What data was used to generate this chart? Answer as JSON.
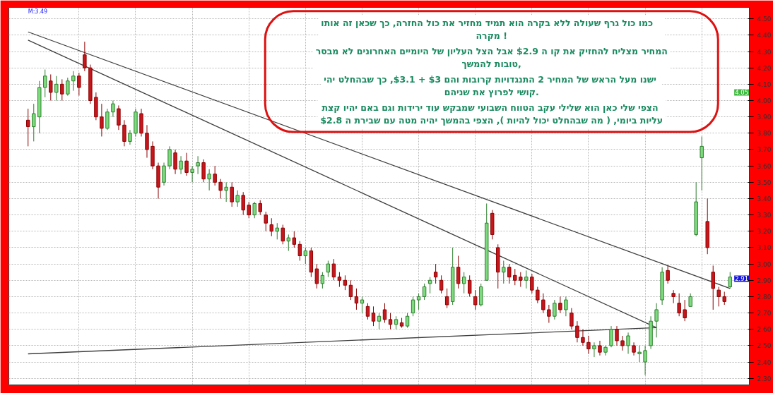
{
  "chart_data": {
    "type": "candlestick",
    "categories": [
      null,
      null,
      null,
      null,
      null,
      null,
      null,
      null,
      null,
      null,
      null,
      null,
      null,
      null,
      null,
      null,
      null,
      null,
      null,
      null,
      null,
      null,
      null,
      null,
      null,
      null,
      null,
      null,
      null,
      null,
      null,
      null,
      null,
      null,
      null,
      null,
      null,
      null,
      null,
      null,
      null,
      null,
      null,
      null,
      null,
      null,
      null,
      null,
      null,
      null,
      null,
      null,
      null,
      null,
      null,
      null,
      null,
      null,
      null,
      null,
      null,
      null,
      null,
      null,
      null,
      null,
      null,
      null,
      null,
      null,
      null,
      null,
      null,
      null,
      null,
      null,
      null,
      null,
      null,
      null,
      null,
      null,
      null,
      null,
      null,
      null,
      null,
      null,
      null,
      null,
      null,
      null,
      null,
      null,
      null,
      null,
      null,
      null,
      null,
      null,
      null,
      null,
      null,
      null,
      null,
      null,
      null,
      null,
      null,
      null,
      null,
      null,
      null,
      null,
      null,
      null,
      null,
      null,
      null,
      null,
      null,
      null,
      null,
      null,
      null
    ],
    "ohlc": [
      [
        3.88,
        3.95,
        3.72,
        3.84
      ],
      [
        3.84,
        3.98,
        3.75,
        3.92
      ],
      [
        3.9,
        4.12,
        3.8,
        4.08
      ],
      [
        4.08,
        4.19,
        4.02,
        4.15
      ],
      [
        4.12,
        4.16,
        4.0,
        4.05
      ],
      [
        4.05,
        4.15,
        4.0,
        4.1
      ],
      [
        4.1,
        4.13,
        4.0,
        4.04
      ],
      [
        4.04,
        4.14,
        4.03,
        4.12
      ],
      [
        4.12,
        4.18,
        4.06,
        4.15
      ],
      [
        4.15,
        4.17,
        4.03,
        4.08
      ],
      [
        4.28,
        4.36,
        4.18,
        4.2
      ],
      [
        4.2,
        4.22,
        3.98,
        4.0
      ],
      [
        4.02,
        4.05,
        3.88,
        3.9
      ],
      [
        3.9,
        3.98,
        3.78,
        3.83
      ],
      [
        3.83,
        3.95,
        3.82,
        3.93
      ],
      [
        3.93,
        4.0,
        3.9,
        3.98
      ],
      [
        3.95,
        3.97,
        3.82,
        3.85
      ],
      [
        3.85,
        3.88,
        3.72,
        3.75
      ],
      [
        3.75,
        3.82,
        3.73,
        3.8
      ],
      [
        3.8,
        3.95,
        3.78,
        3.93
      ],
      [
        3.92,
        3.95,
        3.78,
        3.8
      ],
      [
        3.8,
        3.85,
        3.65,
        3.7
      ],
      [
        3.72,
        3.75,
        3.58,
        3.6
      ],
      [
        3.6,
        3.62,
        3.4,
        3.47
      ],
      [
        3.5,
        3.62,
        3.48,
        3.6
      ],
      [
        3.6,
        3.72,
        3.58,
        3.7
      ],
      [
        3.68,
        3.7,
        3.55,
        3.58
      ],
      [
        3.58,
        3.66,
        3.55,
        3.63
      ],
      [
        3.63,
        3.68,
        3.54,
        3.56
      ],
      [
        3.56,
        3.6,
        3.5,
        3.58
      ],
      [
        3.6,
        3.66,
        3.55,
        3.62
      ],
      [
        3.62,
        3.64,
        3.5,
        3.52
      ],
      [
        3.52,
        3.58,
        3.45,
        3.55
      ],
      [
        3.55,
        3.6,
        3.48,
        3.5
      ],
      [
        3.5,
        3.52,
        3.4,
        3.45
      ],
      [
        3.45,
        3.5,
        3.38,
        3.47
      ],
      [
        3.47,
        3.5,
        3.35,
        3.38
      ],
      [
        3.38,
        3.45,
        3.35,
        3.42
      ],
      [
        3.42,
        3.44,
        3.3,
        3.33
      ],
      [
        3.36,
        3.38,
        3.28,
        3.3
      ],
      [
        3.3,
        3.38,
        3.28,
        3.37
      ],
      [
        3.37,
        3.39,
        3.3,
        3.32
      ],
      [
        3.3,
        3.32,
        3.2,
        3.25
      ],
      [
        3.24,
        3.28,
        3.17,
        3.2
      ],
      [
        3.2,
        3.25,
        3.15,
        3.22
      ],
      [
        3.22,
        3.24,
        3.12,
        3.14
      ],
      [
        3.14,
        3.18,
        3.08,
        3.16
      ],
      [
        3.16,
        3.2,
        3.1,
        3.12
      ],
      [
        3.12,
        3.14,
        3.02,
        3.05
      ],
      [
        3.05,
        3.1,
        3.0,
        3.08
      ],
      [
        3.08,
        3.1,
        2.92,
        2.95
      ],
      [
        2.97,
        3.0,
        2.85,
        2.88
      ],
      [
        2.88,
        2.95,
        2.85,
        2.93
      ],
      [
        2.95,
        3.02,
        2.92,
        3.0
      ],
      [
        3.0,
        3.03,
        2.9,
        2.92
      ],
      [
        2.92,
        2.95,
        2.86,
        2.9
      ],
      [
        2.9,
        2.93,
        2.84,
        2.87
      ],
      [
        2.87,
        2.9,
        2.78,
        2.8
      ],
      [
        2.8,
        2.85,
        2.72,
        2.76
      ],
      [
        2.76,
        2.8,
        2.7,
        2.78
      ],
      [
        2.74,
        2.76,
        2.66,
        2.68
      ],
      [
        2.7,
        2.74,
        2.62,
        2.65
      ],
      [
        2.65,
        2.7,
        2.6,
        2.68
      ],
      [
        2.72,
        2.76,
        2.64,
        2.66
      ],
      [
        2.66,
        2.7,
        2.6,
        2.63
      ],
      [
        2.63,
        2.68,
        2.6,
        2.66
      ],
      [
        2.64,
        2.67,
        2.61,
        2.62
      ],
      [
        2.62,
        2.7,
        2.61,
        2.68
      ],
      [
        2.7,
        2.8,
        2.68,
        2.78
      ],
      [
        2.78,
        2.82,
        2.72,
        2.8
      ],
      [
        2.8,
        2.88,
        2.78,
        2.86
      ],
      [
        2.88,
        2.92,
        2.82,
        2.9
      ],
      [
        2.95,
        3.0,
        2.88,
        2.92
      ],
      [
        2.9,
        2.93,
        2.82,
        2.84
      ],
      [
        2.8,
        2.85,
        2.73,
        2.75
      ],
      [
        2.77,
        3.1,
        2.75,
        2.98
      ],
      [
        2.98,
        3.05,
        2.85,
        2.88
      ],
      [
        2.88,
        2.95,
        2.82,
        2.92
      ],
      [
        2.9,
        2.93,
        2.8,
        2.82
      ],
      [
        2.8,
        2.84,
        2.72,
        2.75
      ],
      [
        2.75,
        2.88,
        2.74,
        2.86
      ],
      [
        2.9,
        3.37,
        2.9,
        3.25
      ],
      [
        3.31,
        3.33,
        3.15,
        3.18
      ],
      [
        3.1,
        3.12,
        2.85,
        2.95
      ],
      [
        2.95,
        3.02,
        2.88,
        2.98
      ],
      [
        2.98,
        3.0,
        2.88,
        2.92
      ],
      [
        2.93,
        2.97,
        2.87,
        2.9
      ],
      [
        2.92,
        2.95,
        2.86,
        2.9
      ],
      [
        2.9,
        2.96,
        2.85,
        2.92
      ],
      [
        2.92,
        2.94,
        2.82,
        2.84
      ],
      [
        2.84,
        2.86,
        2.76,
        2.78
      ],
      [
        2.78,
        2.82,
        2.7,
        2.72
      ],
      [
        2.72,
        2.75,
        2.64,
        2.68
      ],
      [
        2.68,
        2.78,
        2.66,
        2.76
      ],
      [
        2.76,
        2.8,
        2.7,
        2.72
      ],
      [
        2.72,
        2.8,
        2.68,
        2.78
      ],
      [
        2.7,
        2.73,
        2.6,
        2.62
      ],
      [
        2.62,
        2.65,
        2.52,
        2.55
      ],
      [
        2.55,
        2.6,
        2.5,
        2.52
      ],
      [
        2.52,
        2.56,
        2.45,
        2.48
      ],
      [
        2.48,
        2.52,
        2.43,
        2.5
      ],
      [
        2.5,
        2.53,
        2.44,
        2.46
      ],
      [
        2.46,
        2.5,
        2.44,
        2.49
      ],
      [
        2.5,
        2.62,
        2.49,
        2.6
      ],
      [
        2.6,
        2.62,
        2.5,
        2.53
      ],
      [
        2.53,
        2.56,
        2.47,
        2.5
      ],
      [
        2.5,
        2.58,
        2.45,
        2.56
      ],
      [
        2.5,
        2.52,
        2.44,
        2.46
      ],
      [
        2.45,
        2.5,
        2.4,
        2.46
      ],
      [
        2.4,
        2.5,
        2.32,
        2.47
      ],
      [
        2.5,
        2.68,
        2.48,
        2.65
      ],
      [
        2.65,
        2.76,
        2.55,
        2.72
      ],
      [
        2.78,
        2.98,
        2.75,
        2.95
      ],
      [
        2.96,
        2.99,
        2.88,
        2.9
      ],
      [
        2.82,
        2.84,
        2.76,
        2.8
      ],
      [
        2.76,
        2.82,
        2.68,
        2.7
      ],
      [
        2.72,
        2.78,
        2.65,
        2.67
      ],
      [
        2.74,
        2.82,
        2.74,
        2.8
      ],
      [
        3.18,
        3.5,
        3.17,
        3.38
      ],
      [
        3.65,
        3.78,
        3.45,
        3.72
      ],
      [
        3.26,
        3.4,
        3.06,
        3.1
      ],
      [
        2.95,
        2.99,
        2.72,
        2.85
      ],
      [
        2.84,
        2.86,
        2.74,
        2.8
      ],
      [
        2.8,
        2.83,
        2.75,
        2.77
      ],
      [
        2.86,
        2.95,
        2.85,
        2.92
      ]
    ],
    "series": [
      {
        "type": "line",
        "color": "#404040",
        "values": [
          4.42,
          null,
          null,
          null,
          null,
          null,
          null,
          null,
          null,
          null,
          null,
          null,
          null,
          null,
          null,
          null,
          null,
          null,
          null,
          null,
          null,
          null,
          null,
          null,
          null,
          null,
          null,
          null,
          null,
          null,
          null,
          null,
          null,
          null,
          null,
          null,
          null,
          null,
          null,
          null,
          null,
          null,
          null,
          null,
          null,
          null,
          null,
          null,
          null,
          null,
          null,
          null,
          null,
          null,
          null,
          null,
          null,
          null,
          null,
          null,
          null,
          null,
          null,
          null,
          null,
          null,
          null,
          null,
          null,
          null,
          null,
          null,
          null,
          null,
          null,
          null,
          null,
          null,
          null,
          null,
          null,
          null,
          null,
          null,
          null,
          null,
          null,
          null,
          null,
          null,
          null,
          null,
          null,
          null,
          null,
          null,
          null,
          null,
          null,
          null,
          null,
          null,
          null,
          null,
          null,
          null,
          null,
          null,
          null,
          null,
          null,
          null,
          null,
          null,
          null,
          null,
          null,
          null,
          null,
          null,
          null,
          null,
          null,
          null,
          2.85
        ]
      },
      {
        "type": "line",
        "color": "#404040",
        "values": [
          4.37,
          null,
          null,
          null,
          null,
          null,
          null,
          null,
          null,
          null,
          null,
          null,
          null,
          null,
          null,
          null,
          null,
          null,
          null,
          null,
          null,
          null,
          null,
          null,
          null,
          null,
          null,
          null,
          null,
          null,
          null,
          null,
          null,
          null,
          null,
          null,
          null,
          null,
          null,
          null,
          null,
          null,
          null,
          null,
          null,
          null,
          null,
          null,
          null,
          null,
          null,
          null,
          null,
          null,
          null,
          null,
          null,
          null,
          null,
          null,
          null,
          null,
          null,
          null,
          null,
          null,
          null,
          null,
          null,
          null,
          null,
          null,
          null,
          null,
          null,
          null,
          null,
          null,
          null,
          null,
          null,
          null,
          null,
          null,
          null,
          null,
          null,
          null,
          null,
          null,
          null,
          null,
          null,
          null,
          null,
          null,
          null,
          null,
          null,
          null,
          null,
          null,
          null,
          null,
          null,
          null,
          null,
          null,
          null,
          null,
          null,
          2.61,
          null,
          null,
          null,
          null,
          null,
          null,
          null,
          null,
          null,
          null,
          null,
          null,
          null
        ]
      },
      {
        "type": "line",
        "color": "#404040",
        "values": [
          2.45,
          null,
          null,
          null,
          null,
          null,
          null,
          null,
          null,
          null,
          null,
          null,
          null,
          null,
          null,
          null,
          null,
          null,
          null,
          null,
          null,
          null,
          null,
          null,
          null,
          null,
          null,
          null,
          null,
          null,
          null,
          null,
          null,
          null,
          null,
          null,
          null,
          null,
          null,
          null,
          null,
          null,
          null,
          null,
          null,
          null,
          null,
          null,
          null,
          null,
          null,
          null,
          null,
          null,
          null,
          null,
          null,
          null,
          null,
          null,
          null,
          null,
          null,
          null,
          null,
          null,
          null,
          null,
          null,
          null,
          null,
          null,
          null,
          null,
          null,
          null,
          null,
          null,
          null,
          null,
          null,
          null,
          null,
          null,
          null,
          null,
          null,
          null,
          null,
          null,
          null,
          null,
          null,
          null,
          null,
          null,
          null,
          null,
          null,
          null,
          null,
          null,
          null,
          null,
          null,
          null,
          null,
          null,
          null,
          null,
          null,
          2.61,
          null,
          null,
          null,
          null,
          null,
          null,
          null,
          null,
          null,
          null,
          null,
          null,
          null
        ]
      }
    ],
    "ylim": [
      2.26,
      4.57
    ],
    "yticks": [
      {
        "value": 2.3,
        "label": "2.30"
      },
      {
        "value": 2.4,
        "label": "2.40"
      },
      {
        "value": 2.5,
        "label": "2.50"
      },
      {
        "value": 2.6,
        "label": "2.60"
      },
      {
        "value": 2.7,
        "label": "2.70"
      },
      {
        "value": 2.8,
        "label": "2.80"
      },
      {
        "value": 2.9,
        "label": "2.90"
      },
      {
        "value": 3.0,
        "label": "3.00"
      },
      {
        "value": 3.1,
        "label": "3.10"
      },
      {
        "value": 3.2,
        "label": "3.20"
      },
      {
        "value": 3.3,
        "label": "3.30"
      },
      {
        "value": 3.4,
        "label": "3.40"
      },
      {
        "value": 3.5,
        "label": "3.50"
      },
      {
        "value": 3.6,
        "label": "3.60"
      },
      {
        "value": 3.7,
        "label": "3.70"
      },
      {
        "value": 3.8,
        "label": "3.80"
      },
      {
        "value": 3.9,
        "label": "3.90"
      },
      {
        "value": 4.0,
        "label": "4.00"
      },
      {
        "value": 4.1,
        "label": "4.10"
      },
      {
        "value": 4.2,
        "label": "4.20"
      },
      {
        "value": 4.3,
        "label": "4.30"
      },
      {
        "value": 4.4,
        "label": "4.40"
      },
      {
        "value": 4.5,
        "label": "4.50"
      }
    ],
    "tick_labels": "y",
    "grid": true,
    "annotations": [
      "M:3.49",
      {
        "text": "4.05",
        "y": 4.05
      },
      {
        "text": "2.91",
        "y": 2.91
      },
      "כמו כול גרף שעולה ללא בקרה   הוא תמיד מחזיר את כול החזרה, כך שכאן  זה אותו\nמקרה !",
      "המחיר מצליח להחזיק את קו ה $2.9 אבל הצל העליון של היומיים האחרונים לא מבסר\nטובות להמשך,",
      "ישנו מעל הראש של המחיר  2 התנגדויות קרובות והם $3 + $3.1, כך שבהחלט יהי\nקושי לפרוץ את שניהם.",
      "הצפי שלי כאן הוא שלילי עקב  הטווח השבועי שמבקש עוד ירידות וגם באם יהיו קצת\nעליות ביומי, ( מה שבהחלט יכול להיות ), הצפי בהמשך יהיה מטה עם שבירת ה $2.8"
    ]
  }
}
